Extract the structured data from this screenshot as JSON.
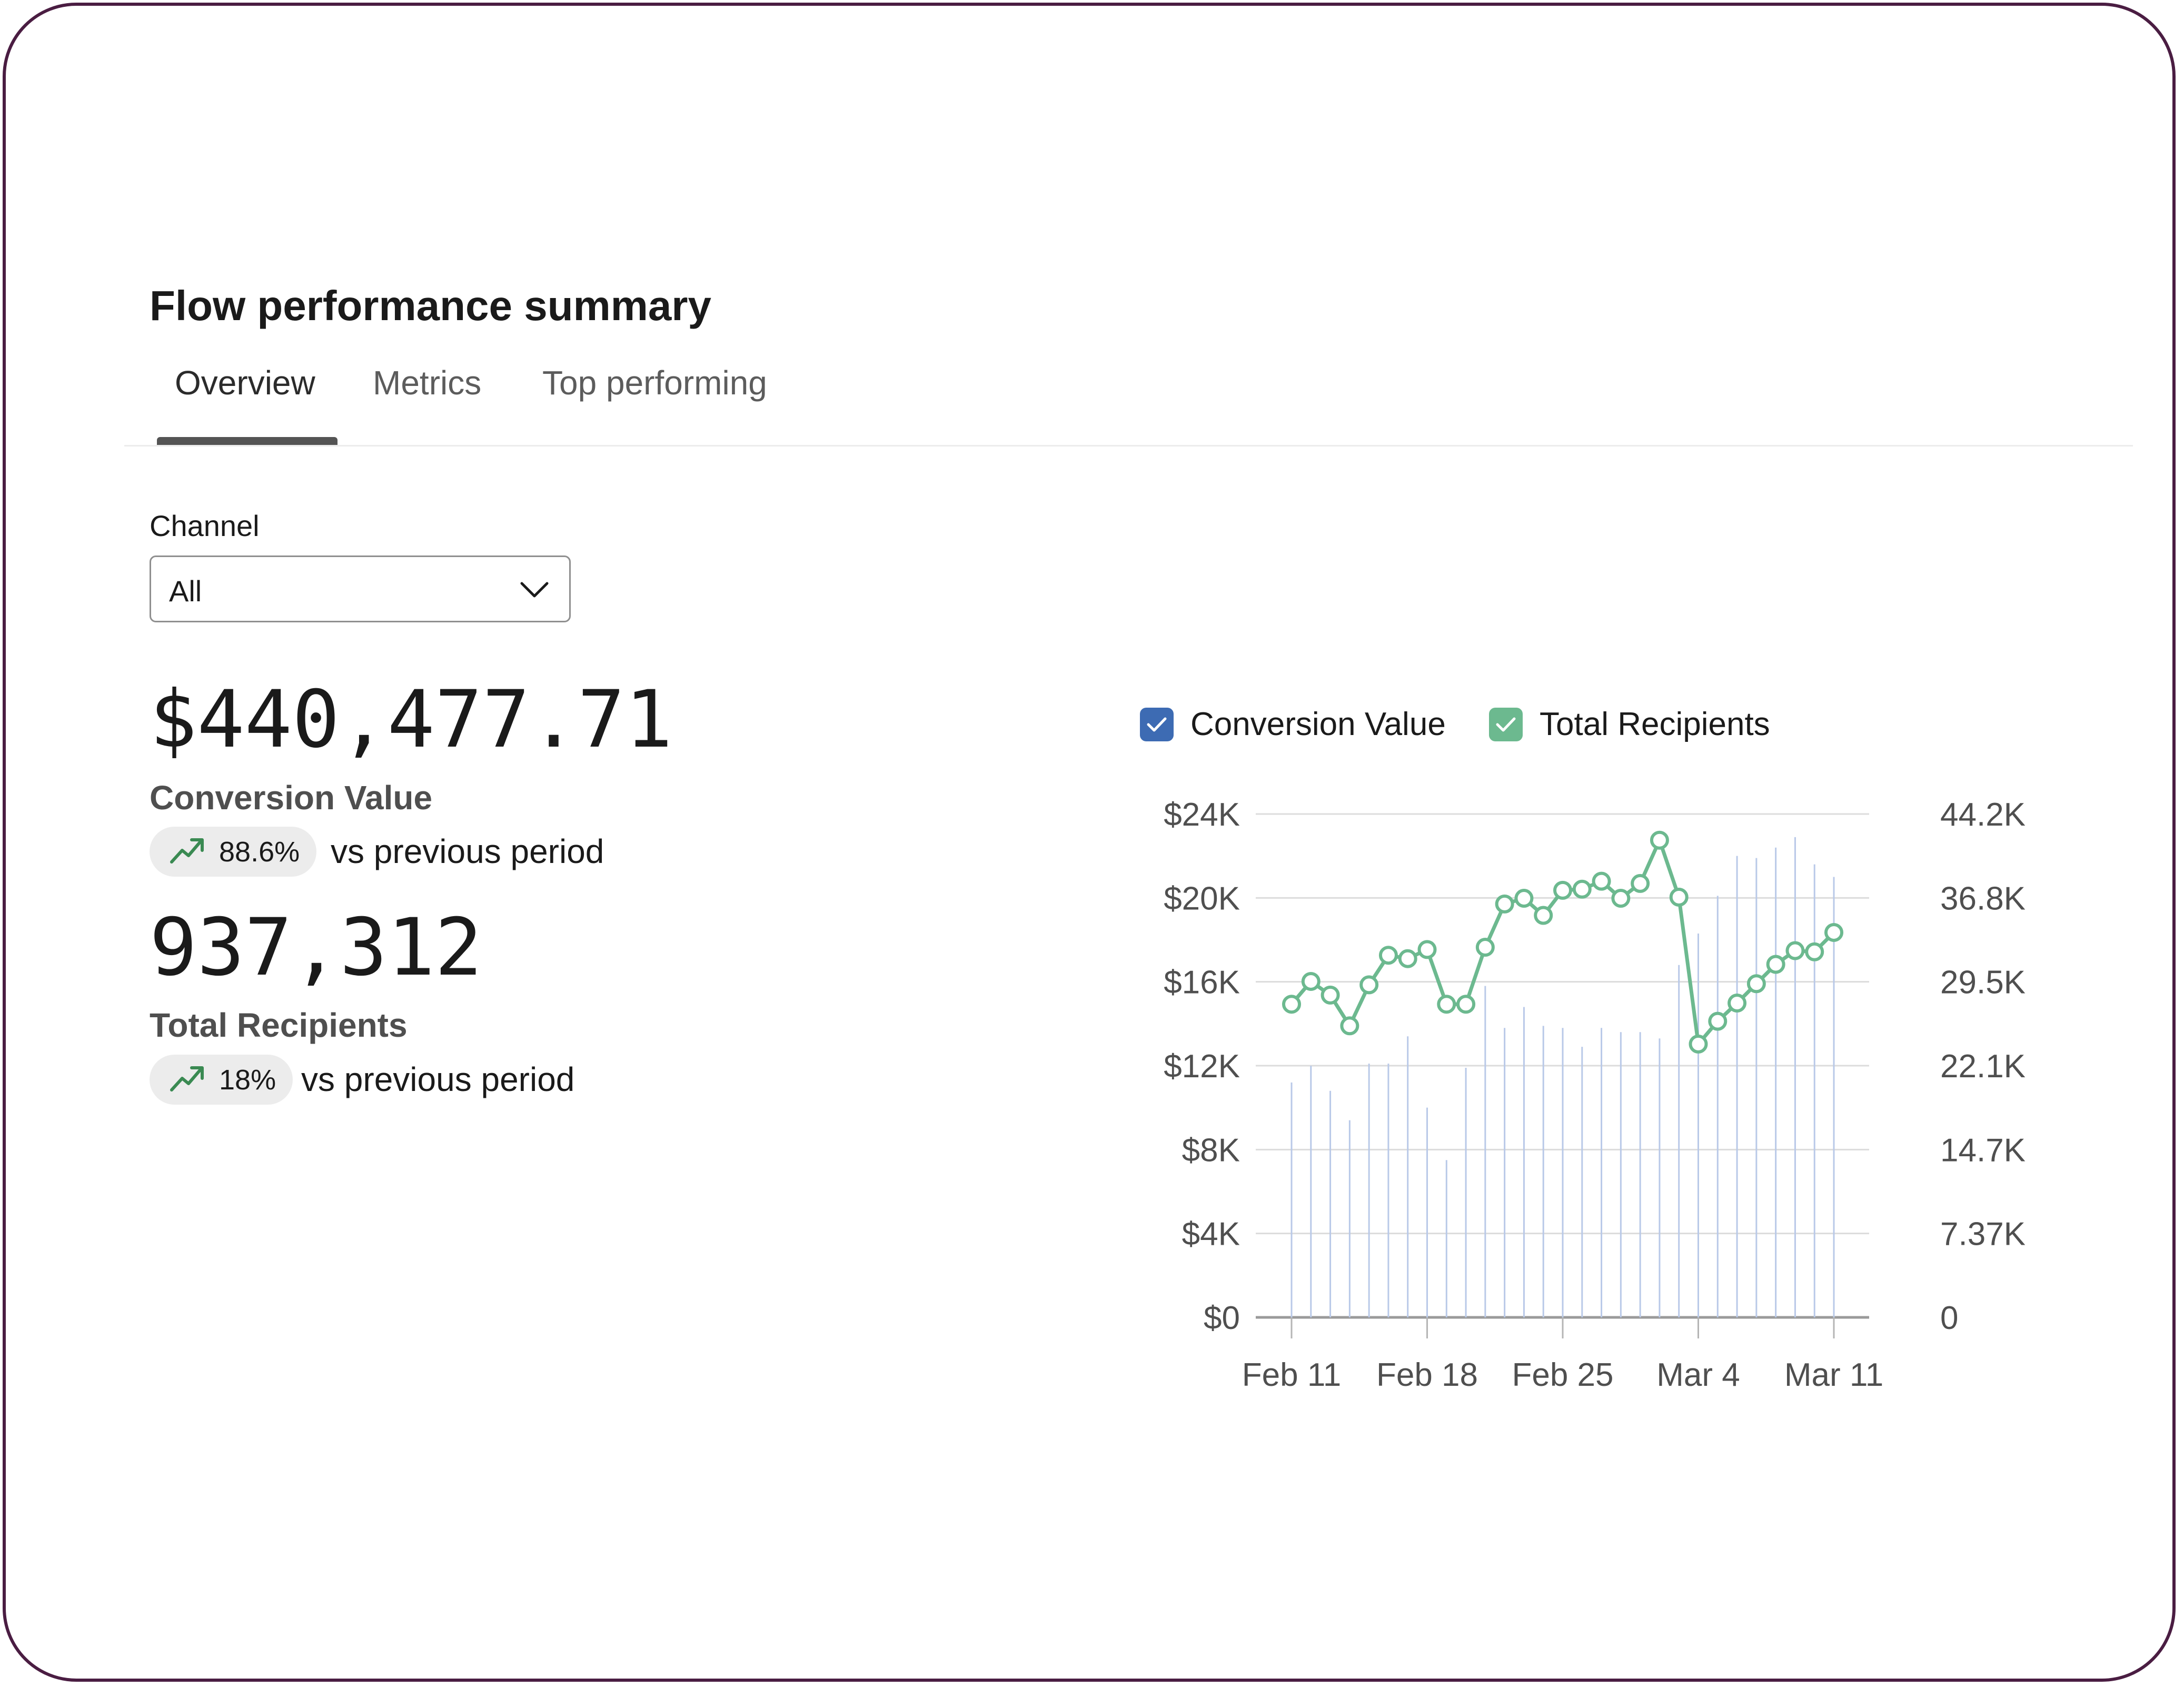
{
  "page": {
    "title": "Flow performance summary"
  },
  "tabs": [
    {
      "label": "Overview",
      "active": true
    },
    {
      "label": "Metrics",
      "active": false
    },
    {
      "label": "Top performing",
      "active": false
    }
  ],
  "filter": {
    "label": "Channel",
    "selected": "All",
    "icon": "chevron-down-icon"
  },
  "kpis": {
    "conversion_value": {
      "value": "$440,477.71",
      "label": "Conversion Value",
      "change": "88.6%",
      "change_icon": "trending-up-icon",
      "compare_text": "vs previous period"
    },
    "total_recipients": {
      "value": "937,312",
      "label": "Total Recipients",
      "change": "18%",
      "change_icon": "trending-up-icon",
      "compare_text": "vs previous period"
    }
  },
  "legend": {
    "items": [
      {
        "label": "Conversion Value",
        "checked": true,
        "color": "#3d6bb3",
        "icon": "checkbox-checked-icon"
      },
      {
        "label": "Total Recipients",
        "checked": true,
        "color": "#6cb98f",
        "icon": "checkbox-checked-icon"
      }
    ]
  },
  "colors": {
    "accent_green": "#6cb98f",
    "accent_blue": "#3d6bb3",
    "badge_bg": "#ececec",
    "trend_green": "#3a8a52",
    "frame": "#4a1d42"
  },
  "chart_data": {
    "type": "bar+line",
    "x_tick_labels": [
      "Feb 11",
      "Feb 18",
      "Feb 25",
      "Mar 4",
      "Mar 11"
    ],
    "y_left": {
      "label": "",
      "ticks": [
        "$0",
        "$4K",
        "$8K",
        "$12K",
        "$16K",
        "$20K",
        "$24K"
      ],
      "ylim": [
        0,
        24000
      ]
    },
    "y_right": {
      "label": "",
      "ticks": [
        "0",
        "7.37K",
        "14.7K",
        "22.1K",
        "29.5K",
        "36.8K",
        "44.2K"
      ],
      "ylim": [
        0,
        44200
      ]
    },
    "grid": true,
    "legend_position": "top-left",
    "series": [
      {
        "name": "Conversion Value",
        "type": "bar",
        "axis": "left",
        "color": "#3d6bb3",
        "x": [
          "Feb 11",
          "Feb 12",
          "Feb 13",
          "Feb 14",
          "Feb 15",
          "Feb 16",
          "Feb 17",
          "Feb 18",
          "Feb 19",
          "Feb 20",
          "Feb 21",
          "Feb 22",
          "Feb 23",
          "Feb 24",
          "Feb 25",
          "Feb 26",
          "Feb 27",
          "Feb 28",
          "Mar 1",
          "Mar 2",
          "Mar 3",
          "Mar 4",
          "Mar 5",
          "Mar 6",
          "Mar 7",
          "Mar 8",
          "Mar 9",
          "Mar 10",
          "Mar 11"
        ],
        "values": [
          11200,
          12000,
          10800,
          9400,
          12100,
          12100,
          13400,
          10000,
          7500,
          11900,
          15800,
          13800,
          14800,
          13900,
          13800,
          12900,
          13800,
          13600,
          13600,
          13300,
          16800,
          18300,
          20100,
          22000,
          21900,
          22400,
          22900,
          21600,
          21000
        ]
      },
      {
        "name": "Total Recipients",
        "type": "line",
        "axis": "right",
        "color": "#6cb98f",
        "x": [
          "Feb 11",
          "Feb 12",
          "Feb 13",
          "Feb 14",
          "Feb 15",
          "Feb 16",
          "Feb 17",
          "Feb 18",
          "Feb 19",
          "Feb 20",
          "Feb 21",
          "Feb 22",
          "Feb 23",
          "Feb 24",
          "Feb 25",
          "Feb 26",
          "Feb 27",
          "Feb 28",
          "Mar 1",
          "Mar 2",
          "Mar 3",
          "Mar 4",
          "Mar 5",
          "Mar 6",
          "Mar 7",
          "Mar 8",
          "Mar 9",
          "Mar 10",
          "Mar 11"
        ],
        "values": [
          27500,
          29500,
          28300,
          25600,
          29200,
          31800,
          31500,
          32300,
          27500,
          27500,
          32500,
          36300,
          36800,
          35300,
          37500,
          37600,
          38300,
          36800,
          38100,
          41900,
          36900,
          24000,
          26000,
          27600,
          29300,
          31000,
          32200,
          32100,
          33800
        ]
      }
    ]
  }
}
